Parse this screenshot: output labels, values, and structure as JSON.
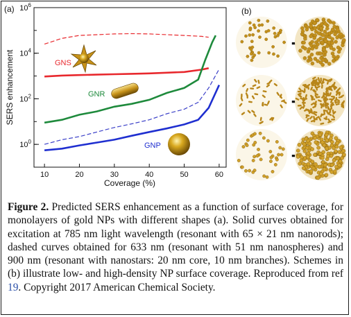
{
  "chart_data": {
    "type": "line",
    "panel_label": "(a)",
    "xlabel": "Coverage (%)",
    "ylabel": "SERS enhancement",
    "xlim": [
      7,
      62
    ],
    "ylim_log10": [
      -1,
      6
    ],
    "yscale": "log",
    "x_ticks": [
      "10",
      "20",
      "30",
      "40",
      "50",
      "60"
    ],
    "y_ticks": [
      {
        "base": "10",
        "exp": "0",
        "v": 0
      },
      {
        "base": "10",
        "exp": "2",
        "v": 2
      },
      {
        "base": "10",
        "exp": "4",
        "v": 4
      },
      {
        "base": "10",
        "exp": "6",
        "v": 6
      }
    ],
    "series": [
      {
        "name": "GNS",
        "style": "solid",
        "color": "#e8282d",
        "points": [
          [
            10,
            950
          ],
          [
            15,
            1050
          ],
          [
            20,
            1100
          ],
          [
            25,
            1150
          ],
          [
            30,
            1200
          ],
          [
            35,
            1250
          ],
          [
            40,
            1300
          ],
          [
            45,
            1400
          ],
          [
            50,
            1500
          ],
          [
            55,
            1900
          ],
          [
            57,
            2200
          ]
        ]
      },
      {
        "name": "",
        "style": "dashed",
        "color": "#e8282d",
        "points": [
          [
            10,
            25000
          ],
          [
            15,
            45000
          ],
          [
            20,
            60000
          ],
          [
            25,
            65000
          ],
          [
            30,
            70000
          ],
          [
            35,
            72000
          ],
          [
            40,
            70000
          ],
          [
            45,
            65000
          ],
          [
            50,
            60000
          ],
          [
            55,
            55000
          ],
          [
            57,
            50000
          ]
        ]
      },
      {
        "name": "GNR",
        "style": "solid",
        "color": "#1e8a3c",
        "points": [
          [
            10,
            9
          ],
          [
            15,
            12
          ],
          [
            20,
            20
          ],
          [
            25,
            28
          ],
          [
            30,
            45
          ],
          [
            35,
            60
          ],
          [
            40,
            90
          ],
          [
            45,
            180
          ],
          [
            50,
            300
          ],
          [
            54,
            700
          ],
          [
            56,
            5000
          ],
          [
            58,
            30000
          ],
          [
            59,
            60000
          ]
        ]
      },
      {
        "name": "",
        "style": "dashed",
        "color": "#3a3fc8",
        "points": [
          [
            10,
            1
          ],
          [
            15,
            1.6
          ],
          [
            20,
            2.2
          ],
          [
            25,
            3.5
          ],
          [
            30,
            5.5
          ],
          [
            35,
            8
          ],
          [
            40,
            12
          ],
          [
            45,
            22
          ],
          [
            50,
            35
          ],
          [
            54,
            70
          ],
          [
            57,
            300
          ],
          [
            60,
            2000
          ]
        ]
      },
      {
        "name": "GNP",
        "style": "solid",
        "color": "#1f2fd0",
        "points": [
          [
            10,
            0.55
          ],
          [
            15,
            0.65
          ],
          [
            20,
            0.9
          ],
          [
            25,
            1.2
          ],
          [
            30,
            1.6
          ],
          [
            35,
            2.4
          ],
          [
            40,
            3.5
          ],
          [
            45,
            5
          ],
          [
            50,
            7.5
          ],
          [
            54,
            12
          ],
          [
            57,
            40
          ],
          [
            60,
            400
          ]
        ]
      }
    ],
    "grid": false,
    "legend": "inline labels"
  },
  "panel_b_label": "(b)",
  "caption": {
    "label": "Figure 2.",
    "line1_rest": "Predicted SERS enhancement as a function of surface",
    "line2": "coverage, for monolayers of gold NPs with different shapes (a).",
    "line3": "Solid curves obtained for excitation at 785 nm light wavelength",
    "line4": "(resonant with 65 × 21 nm nanorods); dashed curves obtained for",
    "line5": "633 nm (resonant with 51 nm nanospheres) and 900 nm (resonant",
    "line6": "with nanostars: 20 nm core, 10 nm branches). Schemes in (b)",
    "line7": "illustrate low- and high-density NP surface coverage. Reproduced",
    "line8_pre": "from ref",
    "line8_ref": "19",
    "line8_post": ". Copyright 2017 American Chemical Society."
  }
}
